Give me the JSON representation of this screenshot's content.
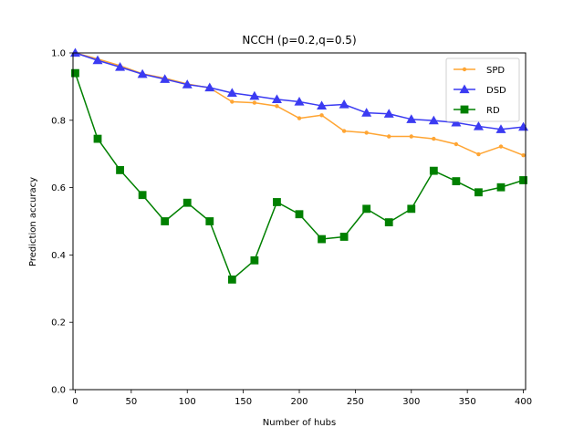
{
  "chart_data": {
    "type": "line",
    "title": "NCCH (p=0.2,q=0.5)",
    "xlabel": "Number of hubs",
    "ylabel": "Prediction accuracy",
    "xlim": [
      -2,
      402
    ],
    "ylim": [
      0.0,
      1.0
    ],
    "xticks": [
      0,
      50,
      100,
      150,
      200,
      250,
      300,
      350,
      400
    ],
    "xtick_labels": [
      "0",
      "50",
      "100",
      "150",
      "200",
      "250",
      "300",
      "350",
      "400"
    ],
    "yticks": [
      0.0,
      0.2,
      0.4,
      0.6,
      0.8,
      1.0
    ],
    "ytick_labels": [
      "0.0",
      "0.2",
      "0.4",
      "0.6",
      "0.8",
      "1.0"
    ],
    "grid": false,
    "legend_position": "top-right",
    "x": [
      0,
      20,
      40,
      60,
      80,
      100,
      120,
      140,
      160,
      180,
      200,
      220,
      240,
      260,
      280,
      300,
      320,
      340,
      360,
      380,
      400
    ],
    "series": [
      {
        "name": "SPD",
        "color": "#ffa533",
        "marker": "point",
        "values": [
          1.0,
          0.982,
          0.962,
          0.938,
          0.925,
          0.908,
          0.896,
          0.855,
          0.852,
          0.842,
          0.806,
          0.815,
          0.768,
          0.763,
          0.752,
          0.752,
          0.745,
          0.729,
          0.699,
          0.722,
          0.696
        ]
      },
      {
        "name": "DSD",
        "color": "#3b3bf2",
        "marker": "triangle",
        "values": [
          1.0,
          0.978,
          0.958,
          0.937,
          0.922,
          0.906,
          0.897,
          0.881,
          0.872,
          0.862,
          0.855,
          0.843,
          0.847,
          0.822,
          0.819,
          0.803,
          0.799,
          0.793,
          0.782,
          0.773,
          0.78
        ]
      },
      {
        "name": "RD",
        "color": "#008000",
        "marker": "square",
        "values": [
          0.94,
          0.745,
          0.652,
          0.578,
          0.5,
          0.555,
          0.5,
          0.327,
          0.384,
          0.557,
          0.521,
          0.447,
          0.454,
          0.537,
          0.497,
          0.537,
          0.65,
          0.619,
          0.586,
          0.601,
          0.622
        ]
      }
    ]
  }
}
